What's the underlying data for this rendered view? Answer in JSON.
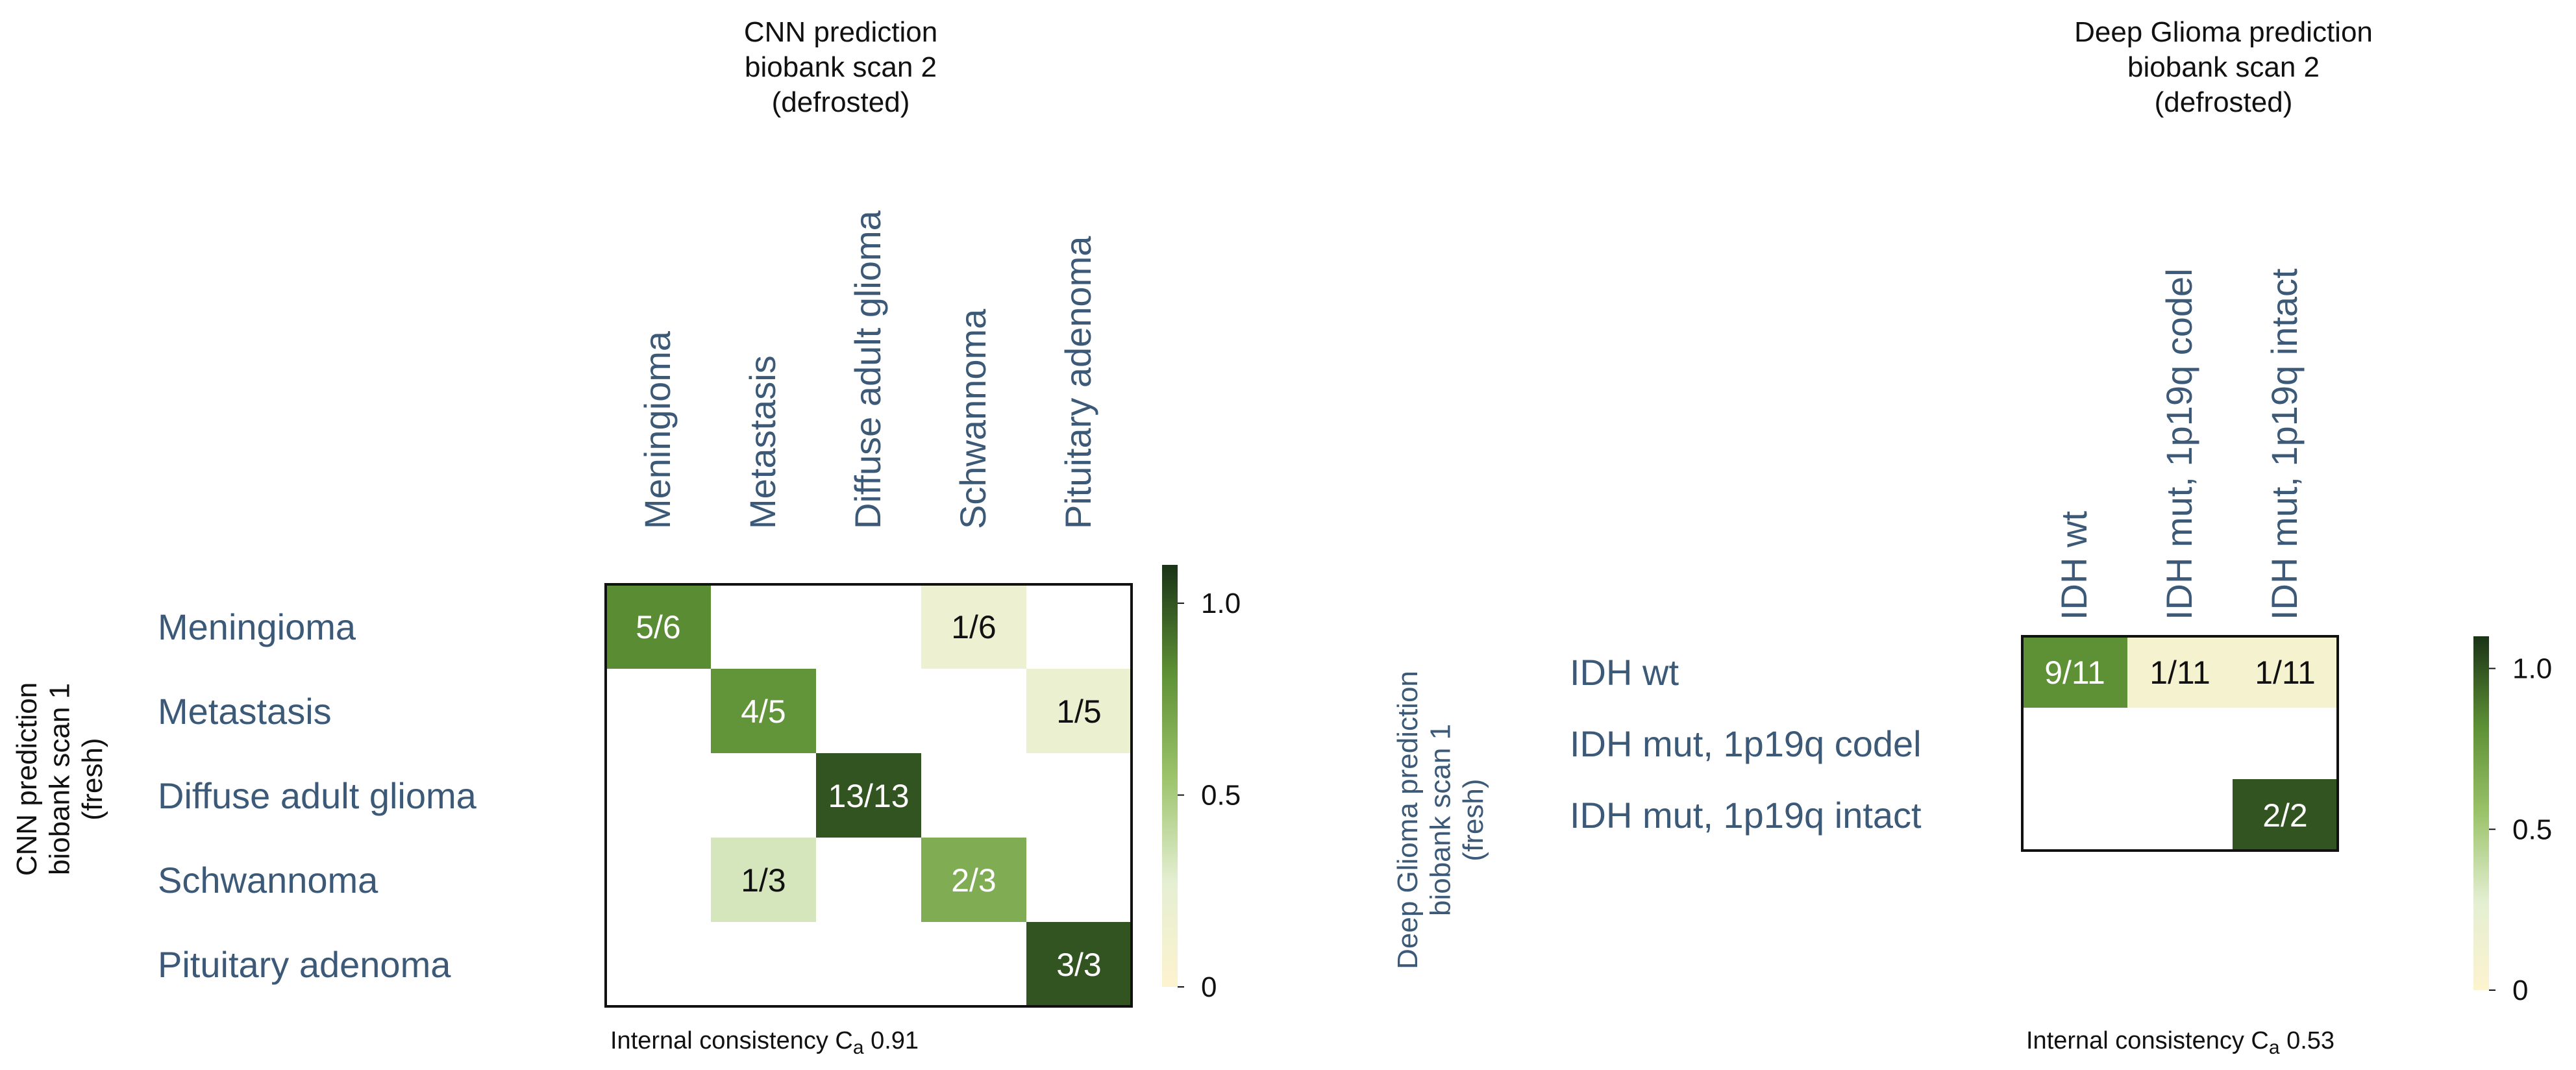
{
  "chart_data": [
    {
      "type": "heatmap",
      "title": [
        "CNN prediction",
        "biobank scan 2",
        "(defrosted)"
      ],
      "ylabel": [
        "CNN prediction",
        "biobank scan 1",
        "(fresh)"
      ],
      "xlabel": "",
      "x_categories": [
        "Meningioma",
        "Metastasis",
        "Diffuse adult glioma",
        "Schwannoma",
        "Pituitary adenoma"
      ],
      "y_categories": [
        "Meningioma",
        "Metastasis",
        "Diffuse adult glioma",
        "Schwannoma",
        "Pituitary adenoma"
      ],
      "values": [
        [
          0.833,
          0,
          0,
          0.167,
          0
        ],
        [
          0,
          0.8,
          0,
          0,
          0.2
        ],
        [
          0,
          0,
          1.0,
          0,
          0
        ],
        [
          0,
          0.333,
          0,
          0.667,
          0
        ],
        [
          0,
          0,
          0,
          0,
          1.0
        ]
      ],
      "cell_labels": [
        [
          "5/6",
          "",
          "",
          "1/6",
          ""
        ],
        [
          "",
          "4/5",
          "",
          "",
          "1/5"
        ],
        [
          "",
          "",
          "13/13",
          "",
          ""
        ],
        [
          "",
          "1/3",
          "",
          "2/3",
          ""
        ],
        [
          "",
          "",
          "",
          "",
          "3/3"
        ]
      ],
      "colorbar": {
        "range": [
          0,
          1.1
        ],
        "ticks": [
          0,
          0.5,
          1.0
        ],
        "tick_labels": [
          "0",
          "0.5",
          "1.0"
        ],
        "colors": [
          "#fdf3cf",
          "#e4efd2",
          "#9bc36a",
          "#5c8f35",
          "#1a3316"
        ]
      },
      "annotation": {
        "prefix": "Internal consistency C",
        "subscript": "a",
        "value": " 0.91"
      }
    },
    {
      "type": "heatmap",
      "title": [
        "Deep Glioma prediction",
        "biobank scan 2",
        "(defrosted)"
      ],
      "ylabel": [
        "Deep Glioma prediction",
        "biobank scan 1",
        "(fresh)"
      ],
      "xlabel": "",
      "x_categories": [
        "IDH wt",
        "IDH mut, 1p19q codel",
        "IDH mut, 1p19q intact"
      ],
      "y_categories": [
        "IDH wt",
        "IDH mut, 1p19q codel",
        "IDH mut, 1p19q intact"
      ],
      "values": [
        [
          0.818,
          0.091,
          0.091
        ],
        [
          0,
          0,
          0
        ],
        [
          0,
          0,
          1.0
        ]
      ],
      "cell_labels": [
        [
          "9/11",
          "1/11",
          "1/11"
        ],
        [
          "",
          "",
          ""
        ],
        [
          "",
          "",
          "2/2"
        ]
      ],
      "colorbar": {
        "range": [
          0,
          1.1
        ],
        "ticks": [
          0,
          0.5,
          1.0
        ],
        "tick_labels": [
          "0",
          "0.5",
          "1.0"
        ],
        "colors": [
          "#fdf3cf",
          "#e4efd2",
          "#9bc36a",
          "#5c8f35",
          "#1a3316"
        ]
      },
      "annotation": {
        "prefix": "Internal consistency C",
        "subscript": "a",
        "value": " 0.53"
      }
    }
  ]
}
